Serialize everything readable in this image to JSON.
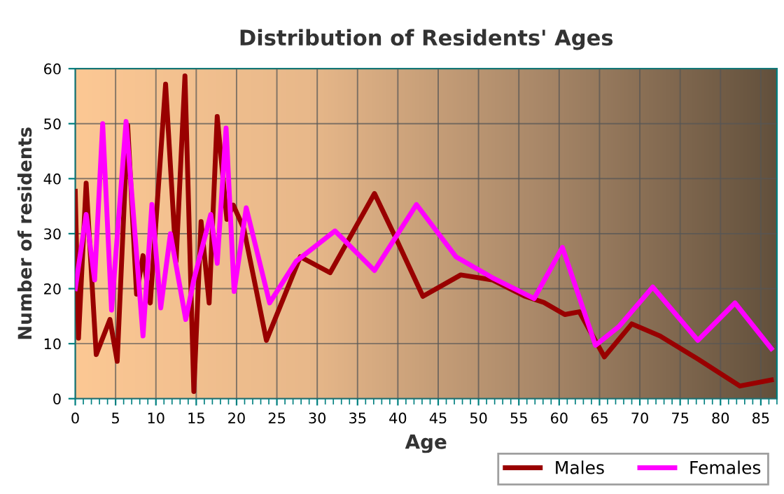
{
  "chart_data": {
    "type": "line",
    "title": "Distribution of Residents' Ages",
    "xlabel": "Age",
    "ylabel": "Number of residents",
    "xlim": [
      0,
      87
    ],
    "xticks": [
      0,
      5,
      10,
      15,
      20,
      25,
      30,
      35,
      40,
      45,
      50,
      55,
      60,
      65,
      70,
      75,
      80,
      85
    ],
    "ylim": [
      0,
      60
    ],
    "yticks": [
      0,
      10,
      20,
      30,
      40,
      50,
      60
    ],
    "grid": true,
    "legend": "bottom",
    "marker": "none",
    "line_style": "solid",
    "series": [
      {
        "name": "Males",
        "color": "#990000",
        "x": [
          0,
          0.4,
          1.35,
          2.6,
          4.3,
          5.2,
          6.5,
          7.6,
          8.4,
          9.3,
          11.2,
          12.5,
          13.6,
          14.7,
          15.6,
          16.6,
          17.6,
          18.8,
          19.6,
          20.9,
          23.7,
          27.9,
          31.6,
          37.1,
          40,
          43.1,
          47.8,
          51.7,
          55.8,
          58.1,
          60.7,
          62.5,
          65.6,
          69,
          72.5,
          77.2,
          82.4,
          86.3
        ],
        "values": [
          37.7,
          11,
          39.2,
          8,
          14.4,
          6.8,
          49.7,
          19,
          26,
          17.4,
          57.2,
          25,
          58.7,
          1.3,
          32.2,
          17.4,
          51.3,
          32.6,
          35.2,
          30.9,
          10.6,
          25.8,
          22.9,
          37.3,
          28.4,
          18.6,
          22.5,
          21.6,
          18.6,
          17.5,
          15.3,
          15.8,
          7.6,
          13.6,
          11.4,
          7.2,
          2.3,
          3.4
        ]
      },
      {
        "name": "Females",
        "color": "#ff00ff",
        "x": [
          0,
          1.35,
          2.4,
          3.4,
          4.5,
          6.3,
          8.4,
          9.5,
          10.6,
          11.8,
          13.7,
          14.7,
          16.8,
          17.6,
          18.7,
          19.7,
          21.2,
          24.1,
          27.4,
          32.2,
          37.1,
          42.3,
          47.2,
          51.7,
          56.9,
          60.4,
          64.5,
          67.4,
          71.6,
          77.2,
          81.8,
          86.3
        ],
        "values": [
          20,
          33.5,
          21.6,
          50,
          16.1,
          50.4,
          11.4,
          35.3,
          16.5,
          30,
          14.4,
          21.6,
          33.5,
          24.6,
          49.2,
          19.5,
          34.7,
          17.4,
          25,
          30.5,
          23.3,
          35.3,
          25.8,
          22,
          18.2,
          27.5,
          9.7,
          13.1,
          20.3,
          10.6,
          17.4,
          9.1
        ]
      }
    ]
  }
}
